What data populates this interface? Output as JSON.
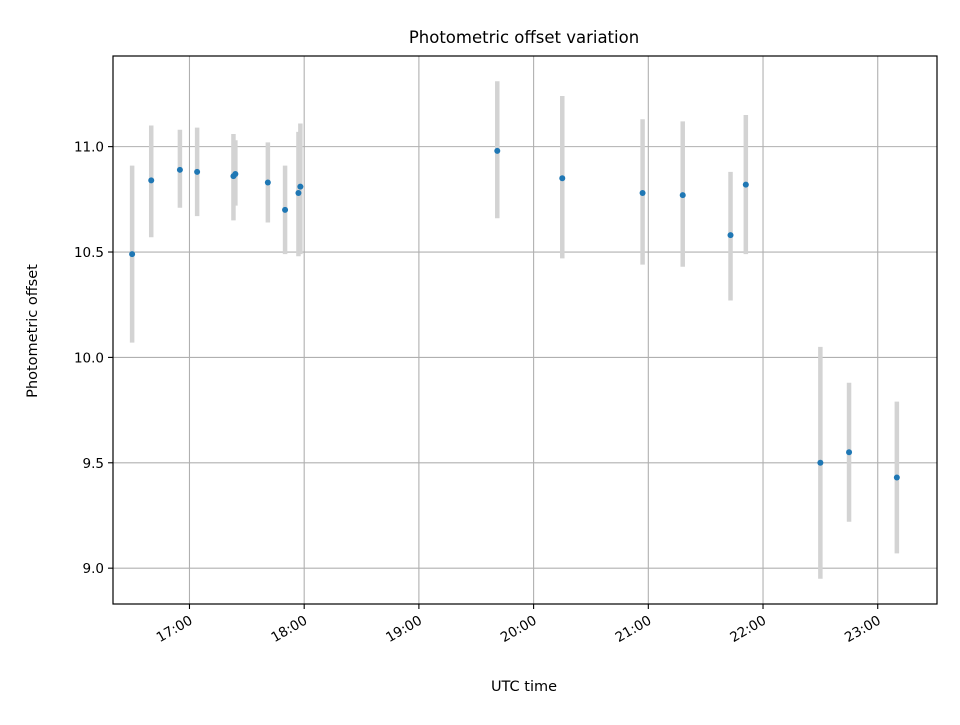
{
  "chart_data": {
    "type": "scatter",
    "title": "Photometric offset variation",
    "xlabel": "UTC time",
    "ylabel": "Photometric offset",
    "x_axis_kind": "time (HH:MM, UTC)",
    "xlim": [
      "16:20",
      "23:31"
    ],
    "ylim": [
      8.83,
      11.43
    ],
    "x_ticks": [
      "17:00",
      "18:00",
      "19:00",
      "20:00",
      "21:00",
      "22:00",
      "23:00"
    ],
    "y_ticks": [
      9.0,
      9.5,
      10.0,
      10.5,
      11.0
    ],
    "y_tick_labels": [
      "9.0",
      "9.5",
      "10.0",
      "10.5",
      "11.0"
    ],
    "grid": true,
    "colors": {
      "points": "#1f77b4",
      "error_bars": "#d3d3d3",
      "grid": "#b0b0b0"
    },
    "points": [
      {
        "time": "16:30",
        "value": 10.49,
        "err_low": 10.07,
        "err_high": 10.91
      },
      {
        "time": "16:40",
        "value": 10.84,
        "err_low": 10.57,
        "err_high": 11.1
      },
      {
        "time": "16:55",
        "value": 10.89,
        "err_low": 10.71,
        "err_high": 11.08
      },
      {
        "time": "17:04",
        "value": 10.88,
        "err_low": 10.67,
        "err_high": 11.09
      },
      {
        "time": "17:23",
        "value": 10.86,
        "err_low": 10.65,
        "err_high": 11.06
      },
      {
        "time": "17:24",
        "value": 10.87,
        "err_low": 10.72,
        "err_high": 11.03
      },
      {
        "time": "17:41",
        "value": 10.83,
        "err_low": 10.64,
        "err_high": 11.02
      },
      {
        "time": "17:50",
        "value": 10.7,
        "err_low": 10.49,
        "err_high": 10.91
      },
      {
        "time": "17:57",
        "value": 10.78,
        "err_low": 10.48,
        "err_high": 11.07
      },
      {
        "time": "17:58",
        "value": 10.81,
        "err_low": 10.49,
        "err_high": 11.11
      },
      {
        "time": "19:41",
        "value": 10.98,
        "err_low": 10.66,
        "err_high": 11.31
      },
      {
        "time": "20:15",
        "value": 10.85,
        "err_low": 10.47,
        "err_high": 11.24
      },
      {
        "time": "20:57",
        "value": 10.78,
        "err_low": 10.44,
        "err_high": 11.13
      },
      {
        "time": "21:18",
        "value": 10.77,
        "err_low": 10.43,
        "err_high": 11.12
      },
      {
        "time": "21:43",
        "value": 10.58,
        "err_low": 10.27,
        "err_high": 10.88
      },
      {
        "time": "21:51",
        "value": 10.82,
        "err_low": 10.49,
        "err_high": 11.15
      },
      {
        "time": "22:30",
        "value": 9.5,
        "err_low": 8.95,
        "err_high": 10.05
      },
      {
        "time": "22:45",
        "value": 9.55,
        "err_low": 9.22,
        "err_high": 9.88
      },
      {
        "time": "23:10",
        "value": 9.43,
        "err_low": 9.07,
        "err_high": 9.79
      }
    ]
  }
}
